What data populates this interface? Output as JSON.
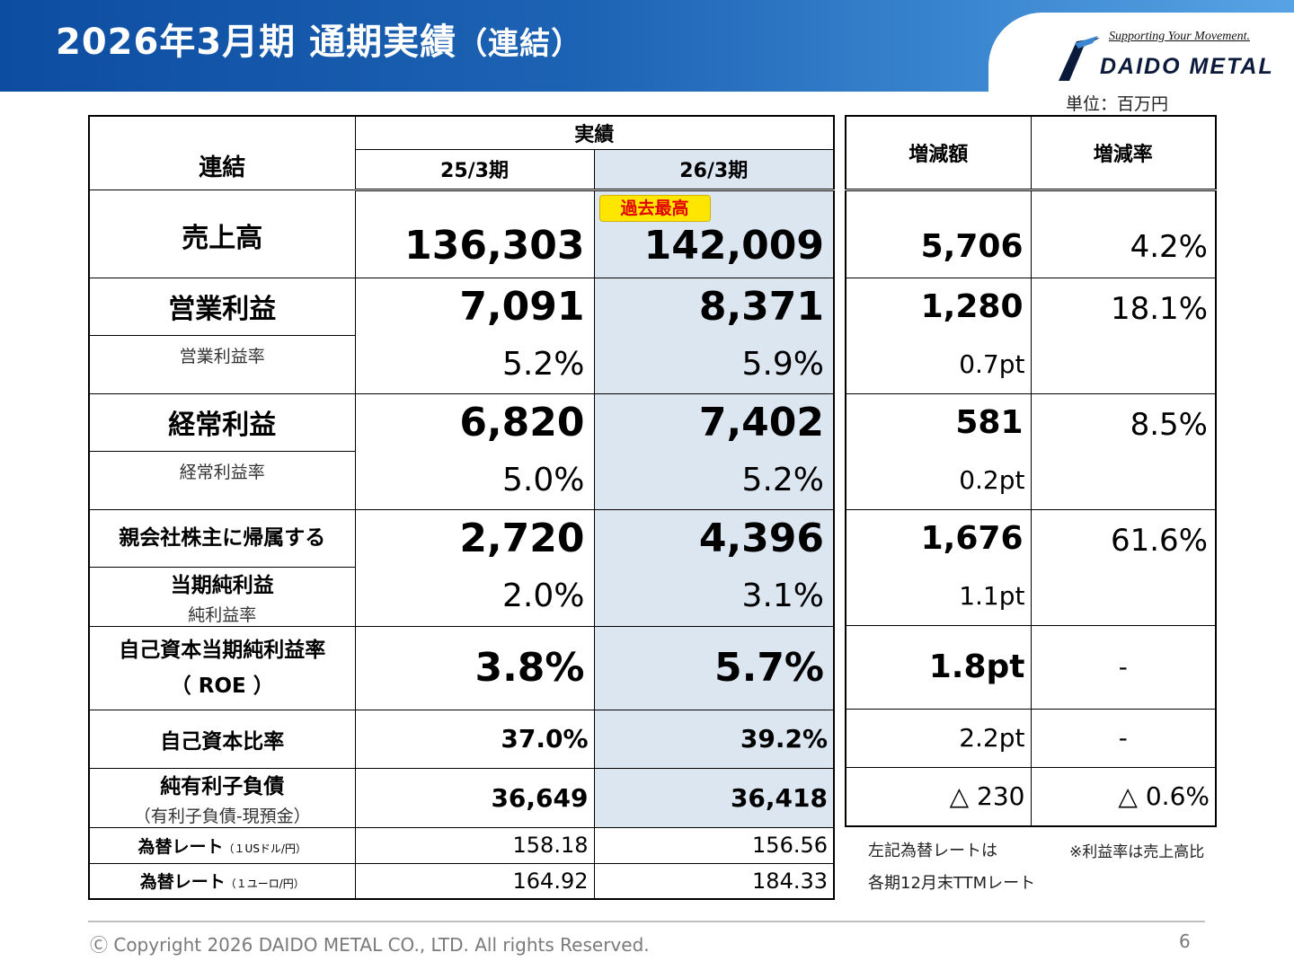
{
  "header": {
    "title": "2026年3月期 通期実績",
    "title_paren": "（連結）"
  },
  "logo": {
    "tagline": "Supporting Your Movement.",
    "name": "DAIDO METAL"
  },
  "unit_label": "単位：百万円",
  "table": {
    "corner_label": "連結",
    "group_header": "実績",
    "col_prev": "25/3期",
    "col_curr": "26/3期",
    "col_diff": "増減額",
    "col_rate": "増減率",
    "record_badge": "過去最高",
    "sales": {
      "label": "売上高",
      "prev": "136,303",
      "curr": "142,009",
      "diff": "5,706",
      "rate": "4.2%"
    },
    "op": {
      "label": "営業利益",
      "sublabel": "営業利益率",
      "prev": "7,091",
      "curr": "8,371",
      "diff": "1,280",
      "rate": "18.1%",
      "prev_margin": "5.2%",
      "curr_margin": "5.9%",
      "margin_diff": "0.7pt"
    },
    "ord": {
      "label": "経常利益",
      "sublabel": "経常利益率",
      "prev": "6,820",
      "curr": "7,402",
      "diff": "581",
      "rate": "8.5%",
      "prev_margin": "5.0%",
      "curr_margin": "5.2%",
      "margin_diff": "0.2pt"
    },
    "net": {
      "label1": "親会社株主に帰属する",
      "label2": "当期純利益",
      "sublabel": "純利益率",
      "prev": "2,720",
      "curr": "4,396",
      "diff": "1,676",
      "rate": "61.6%",
      "prev_margin": "2.0%",
      "curr_margin": "3.1%",
      "margin_diff": "1.1pt"
    },
    "roe": {
      "label1": "自己資本当期純利益率",
      "label2": "（ ROE ）",
      "prev": "3.8%",
      "curr": "5.7%",
      "diff": "1.8pt",
      "rate": "-"
    },
    "equity": {
      "label": "自己資本比率",
      "prev": "37.0%",
      "curr": "39.2%",
      "diff": "2.2pt",
      "rate": "-"
    },
    "debt": {
      "label": "純有利子負債",
      "sublabel": "（有利子負債-現預金）",
      "prev": "36,649",
      "curr": "36,418",
      "diff": "△ 230",
      "rate": "△ 0.6%"
    },
    "fx_usd": {
      "label": "為替レート",
      "sublabel": "（１USドル/円）",
      "prev": "158.18",
      "curr": "156.56"
    },
    "fx_eur": {
      "label": "為替レート",
      "sublabel": "（１ユーロ/円）",
      "prev": "164.92",
      "curr": "184.33"
    }
  },
  "notes": {
    "fx_note_1": "左記為替レートは",
    "fx_note_2": "各期12月末TTMレート",
    "margin_note": "※利益率は売上高比"
  },
  "footer": {
    "copyright": "Ⓒ Copyright 2026 DAIDO METAL CO., LTD. All rights Reserved.",
    "page_number": "6"
  },
  "colors": {
    "header_blue": "#0d4da1",
    "highlight": "#dce6f1",
    "badge_yellow": "#ffe600",
    "badge_text": "#e00000"
  }
}
